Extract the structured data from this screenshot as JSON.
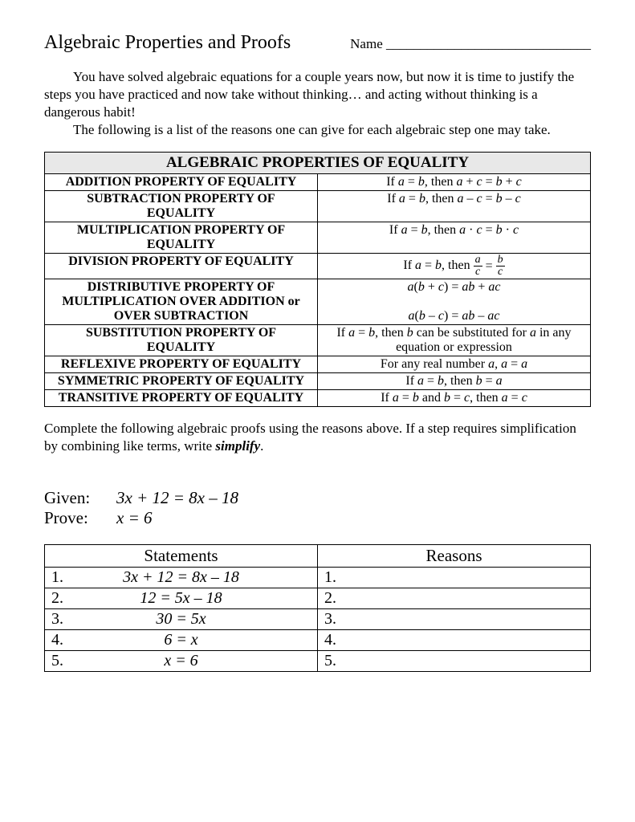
{
  "title": "Algebraic Properties and Proofs",
  "name_label": "Name ______________________________",
  "intro_p1": "You have solved algebraic equations for a couple years now, but now it is time to justify the steps you have practiced and now take without thinking… and acting without thinking is a dangerous habit!",
  "intro_p2": "The following is a list of the reasons one can give for each algebraic step one may take.",
  "table_title": "ALGEBRAIC PROPERTIES OF EQUALITY",
  "properties": {
    "r1_name": "ADDITION PROPERTY OF EQUALITY",
    "r2_name": "SUBTRACTION PROPERTY OF EQUALITY",
    "r3_name": "MULTIPLICATION PROPERTY OF EQUALITY",
    "r4_name": "DIVISION PROPERTY OF EQUALITY",
    "r5_name": "DISTRIBUTIVE PROPERTY OF MULTIPLICATION OVER ADDITION or OVER SUBTRACTION",
    "r6_name": "SUBSTITUTION PROPERTY OF EQUALITY",
    "r7_name": "REFLEXIVE PROPERTY OF EQUALITY",
    "r8_name": "SYMMETRIC PROPERTY OF EQUALITY",
    "r9_name": "TRANSITIVE PROPERTY OF EQUALITY"
  },
  "instructions_pre": "Complete the following algebraic proofs using the reasons above.  If a step requires simplification by combining like terms, write ",
  "instructions_bold": "simplify",
  "instructions_post": ".",
  "given_label": "Given:",
  "given_expr": "3x + 12 = 8x – 18",
  "prove_label": "Prove:",
  "prove_expr": "x = 6",
  "proof_header_statements": "Statements",
  "proof_header_reasons": "Reasons",
  "proof": {
    "s1": "3x + 12 = 8x – 18",
    "s2": "12 = 5x – 18",
    "s3": "30 = 5x",
    "s4": "6 = x",
    "s5": "x = 6",
    "n1": "1.",
    "n2": "2.",
    "n3": "3.",
    "n4": "4.",
    "n5": "5.",
    "r1": "1.",
    "r2": "2.",
    "r3": "3.",
    "r4": "4.",
    "r5": "5."
  }
}
